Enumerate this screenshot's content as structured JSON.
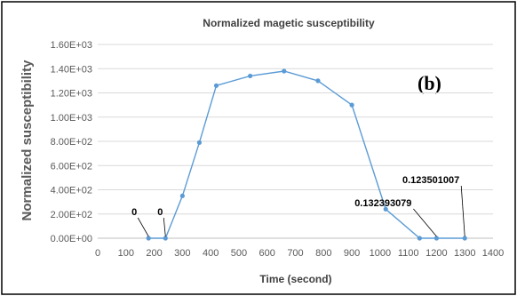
{
  "chart_data": {
    "type": "line",
    "title": "Normalized magetic susceptibility",
    "xlabel": "Time (second)",
    "ylabel": "Normalized susceptibility",
    "panel_label": "(b)",
    "xlim": [
      0,
      1400
    ],
    "ylim": [
      0,
      1600
    ],
    "x_ticks": [
      "0",
      "100",
      "200",
      "300",
      "400",
      "500",
      "600",
      "700",
      "800",
      "900",
      "1000",
      "1100",
      "1200",
      "1300",
      "1400"
    ],
    "y_ticks": [
      "0.00E+00",
      "2.00E+02",
      "4.00E+02",
      "6.00E+02",
      "8.00E+02",
      "1.00E+03",
      "1.20E+03",
      "1.40E+03",
      "1.60E+03"
    ],
    "grid": true,
    "line_color": "#5b9bd5",
    "series": [
      {
        "x": [
          180,
          240,
          300,
          360,
          420,
          540,
          660,
          780,
          900,
          1020,
          1140,
          1200,
          1300
        ],
        "y": [
          0,
          0,
          350,
          790,
          1260,
          1340,
          1380,
          1300,
          1100,
          240,
          0,
          0.132393079,
          0.123501007
        ]
      }
    ],
    "data_labels": [
      {
        "x": 180,
        "y": 0,
        "text": "0"
      },
      {
        "x": 240,
        "y": 0,
        "text": "0"
      },
      {
        "x": 1200,
        "y": 0.132393079,
        "text": "0.132393079"
      },
      {
        "x": 1300,
        "y": 0.123501007,
        "text": "0.123501007"
      }
    ]
  }
}
